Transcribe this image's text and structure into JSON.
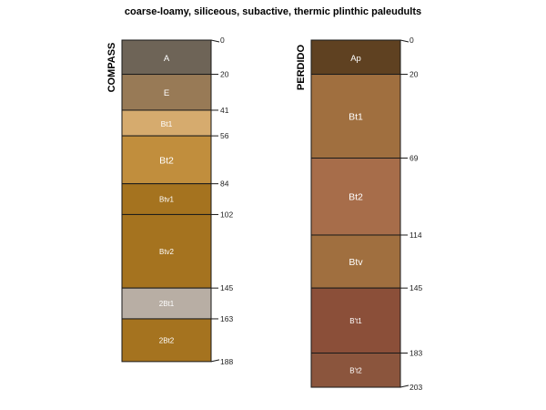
{
  "title": "coarse-loamy, siliceous, subactive, thermic plinthic paleudults",
  "profiles": [
    {
      "name": "COMPASS",
      "horizons": [
        {
          "name": "A",
          "top": 0,
          "bottom": 20,
          "color": "#6e6457"
        },
        {
          "name": "E",
          "top": 20,
          "bottom": 41,
          "color": "#987a56"
        },
        {
          "name": "Bt1",
          "top": 41,
          "bottom": 56,
          "color": "#d6ab6e"
        },
        {
          "name": "Bt2",
          "top": 56,
          "bottom": 84,
          "color": "#c18e3d"
        },
        {
          "name": "Btv1",
          "top": 84,
          "bottom": 102,
          "color": "#a5731f"
        },
        {
          "name": "Btv2",
          "top": 102,
          "bottom": 145,
          "color": "#a5731f"
        },
        {
          "name": "2Bt1",
          "top": 145,
          "bottom": 163,
          "color": "#b8aea4"
        },
        {
          "name": "2Bt2",
          "top": 163,
          "bottom": 188,
          "color": "#a5731f"
        }
      ],
      "depth_labels": [
        "0",
        "20",
        "41",
        "56",
        "84",
        "102",
        "145",
        "163",
        "188"
      ]
    },
    {
      "name": "PERDIDO",
      "horizons": [
        {
          "name": "Ap",
          "top": 0,
          "bottom": 20,
          "color": "#5f4121"
        },
        {
          "name": "Bt1",
          "top": 20,
          "bottom": 69,
          "color": "#a06f3f"
        },
        {
          "name": "Bt2",
          "top": 69,
          "bottom": 114,
          "color": "#a76d4a"
        },
        {
          "name": "Btv",
          "top": 114,
          "bottom": 145,
          "color": "#a06f3f"
        },
        {
          "name": "B't1",
          "top": 145,
          "bottom": 183,
          "color": "#8b4f39"
        },
        {
          "name": "B't2",
          "top": 183,
          "bottom": 203,
          "color": "#8b553d"
        }
      ],
      "depth_labels": [
        "0",
        "20",
        "69",
        "114",
        "145",
        "183",
        "203"
      ]
    }
  ]
}
